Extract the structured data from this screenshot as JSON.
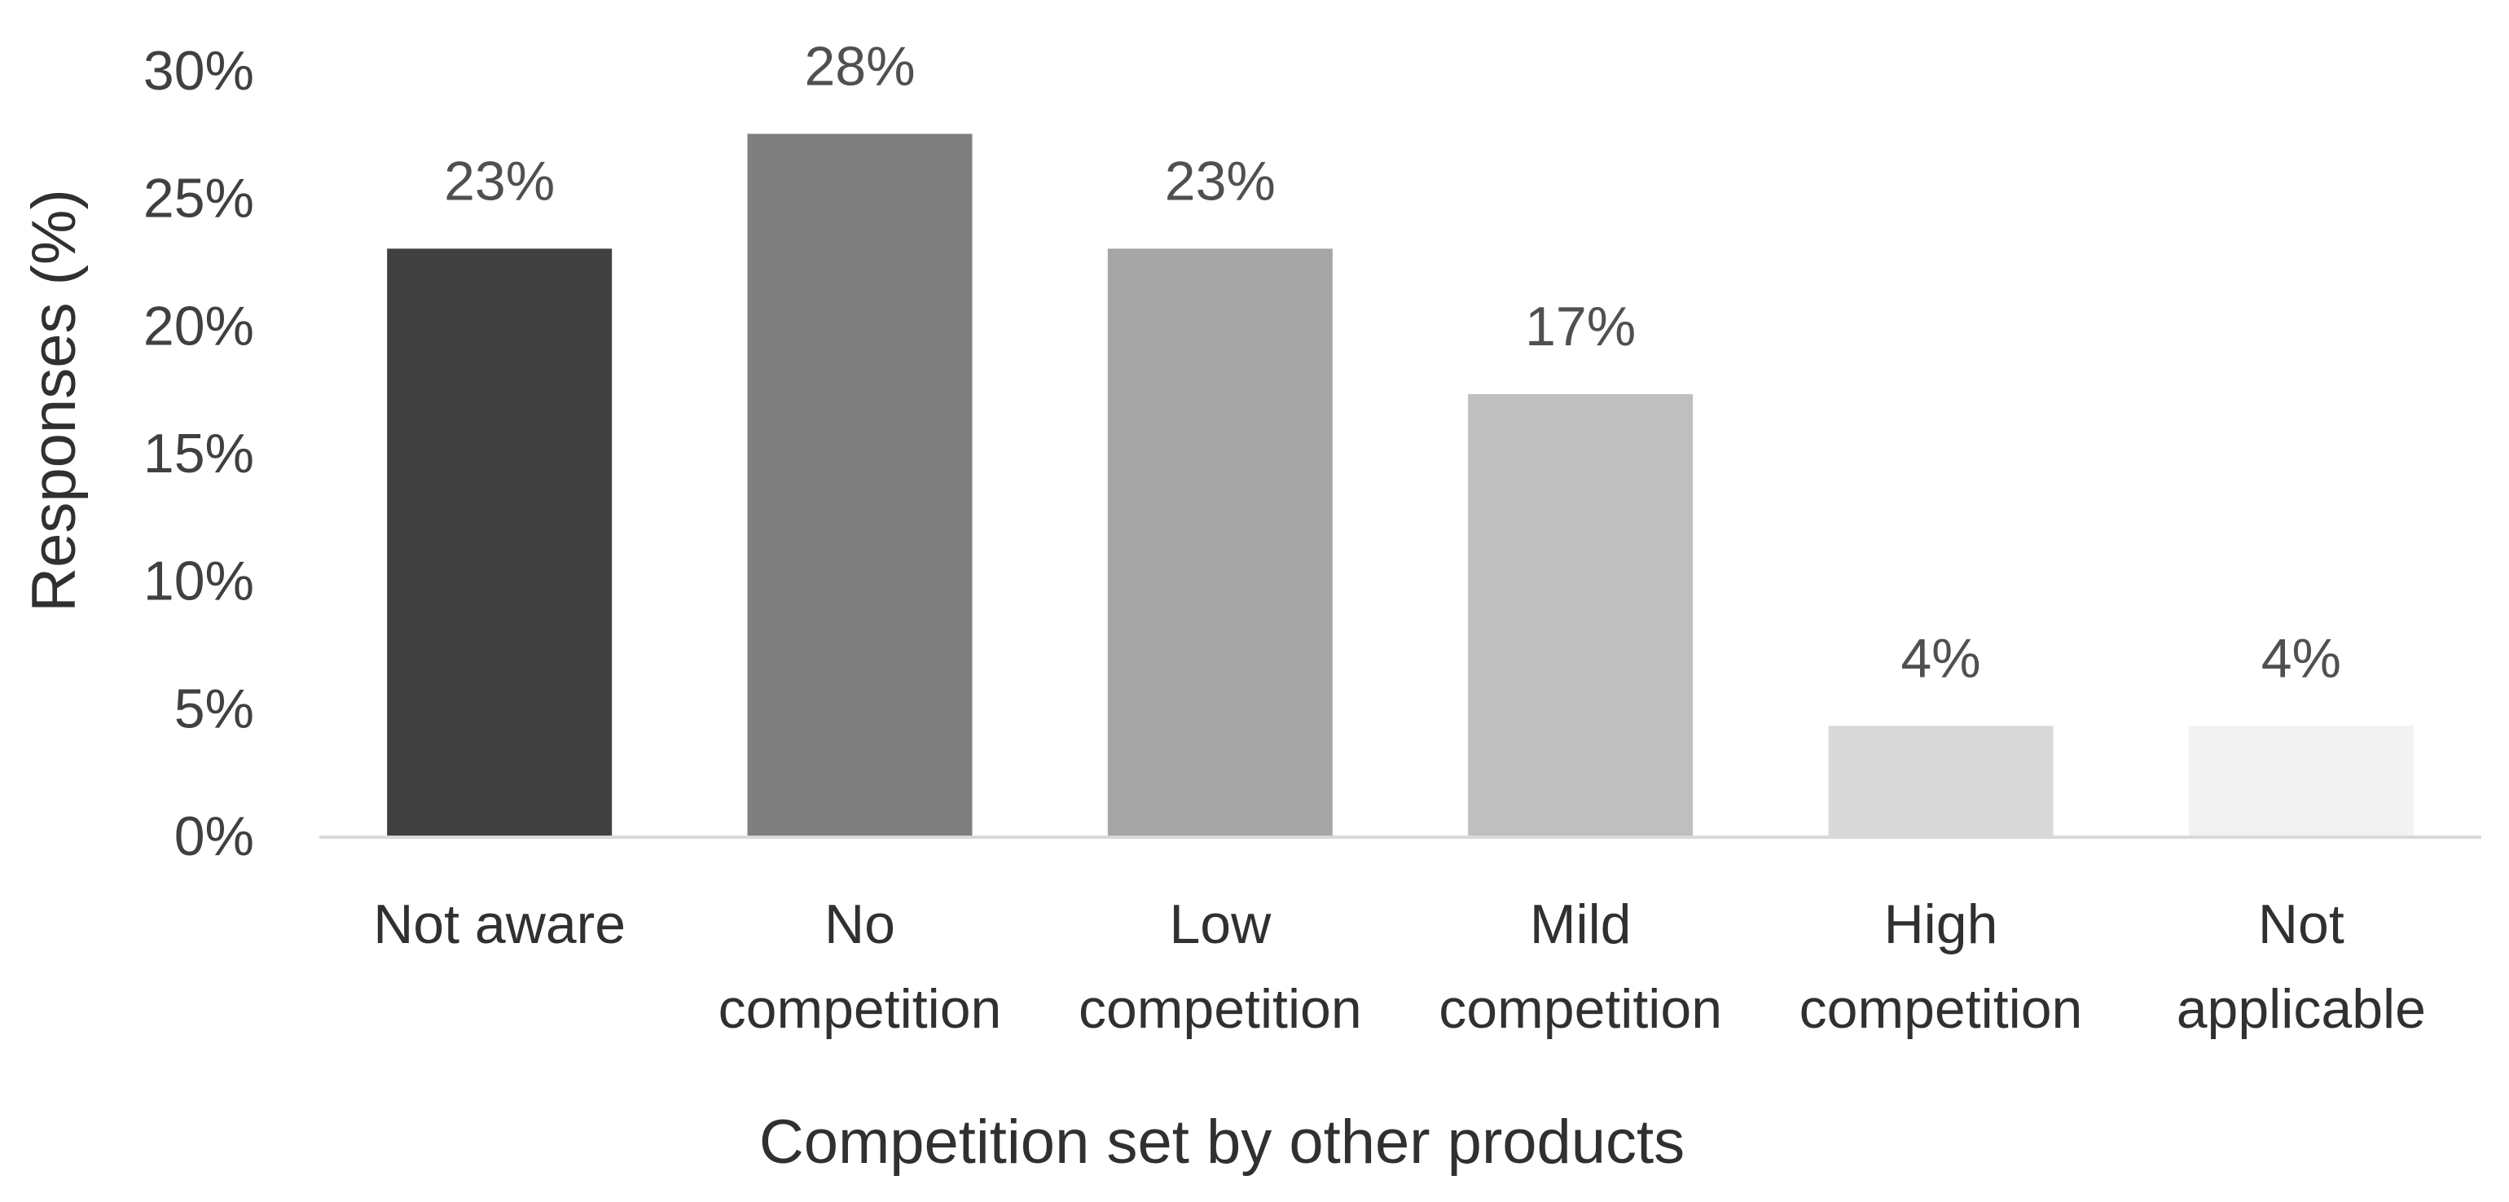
{
  "chart_data": {
    "type": "bar",
    "title": "",
    "xlabel": "Competition set by other products",
    "ylabel": "Responses (%)",
    "ylim": [
      0,
      30
    ],
    "yticks": [
      "0%",
      "5%",
      "10%",
      "15%",
      "20%",
      "25%",
      "30%"
    ],
    "grid": false,
    "legend": "none",
    "categories": [
      [
        "Not aware"
      ],
      [
        "No",
        "competition"
      ],
      [
        "Low",
        "competition"
      ],
      [
        "Mild",
        "competition"
      ],
      [
        "High",
        "competition"
      ],
      [
        "Not",
        "applicable"
      ]
    ],
    "values": [
      23,
      27.5,
      23,
      17.3,
      4.3,
      4.3
    ],
    "data_labels": [
      "23%",
      "28%",
      "23%",
      "17%",
      "4%",
      "4%"
    ],
    "colors": [
      "#404040",
      "#7f7f7f",
      "#a6a6a6",
      "#bfbfbf",
      "#d9d9d9",
      "#f2f2f2"
    ],
    "axis_color": "#d9d9d9"
  }
}
